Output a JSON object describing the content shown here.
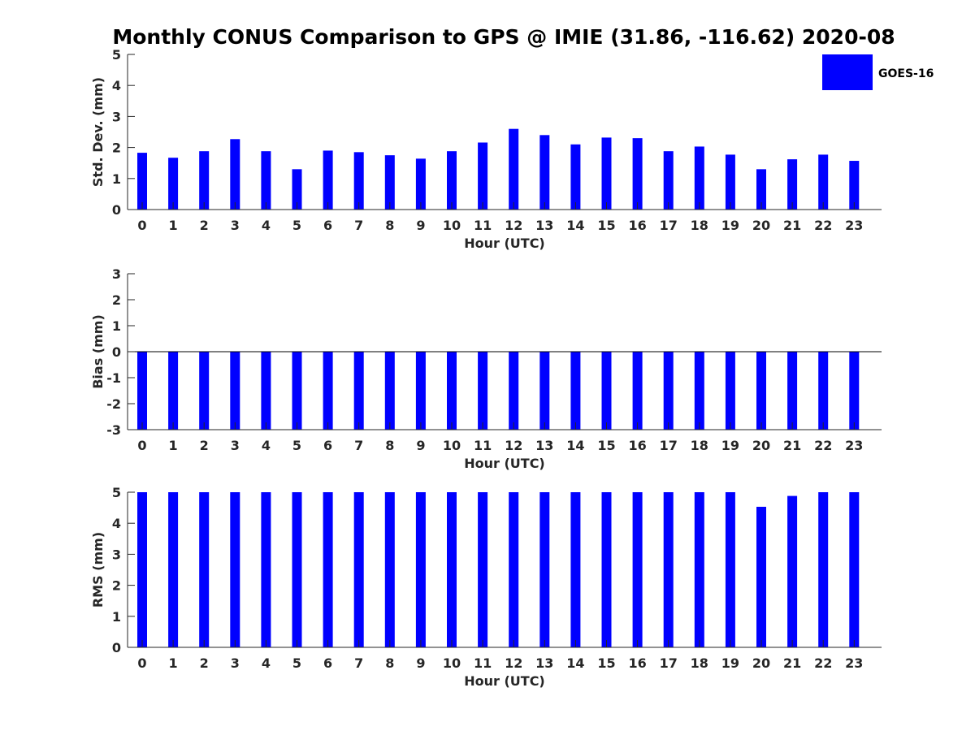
{
  "chart_data": {
    "title": "Monthly CONUS Comparison to GPS @ IMIE (31.86, -116.62) 2020-08",
    "legend": {
      "entries": [
        "GOES-16"
      ],
      "placement": "top-right"
    },
    "series_color": "#0000ff",
    "panels": [
      {
        "type": "bar",
        "xlabel": "Hour (UTC)",
        "ylabel": "Std. Dev. (mm)",
        "ylim": [
          0,
          5
        ],
        "yticks": [
          0,
          1,
          2,
          3,
          4,
          5
        ],
        "categories": [
          "0",
          "1",
          "2",
          "3",
          "4",
          "5",
          "6",
          "7",
          "8",
          "9",
          "10",
          "11",
          "12",
          "13",
          "14",
          "15",
          "16",
          "17",
          "18",
          "19",
          "20",
          "21",
          "22",
          "23"
        ],
        "series": [
          {
            "name": "GOES-16",
            "values": [
              1.83,
              1.67,
              1.88,
              2.27,
              1.88,
              1.3,
              1.9,
              1.85,
              1.75,
              1.64,
              1.88,
              2.16,
              2.6,
              2.4,
              2.1,
              2.32,
              2.3,
              1.88,
              2.03,
              1.77,
              1.3,
              1.62,
              1.77,
              1.57
            ]
          }
        ]
      },
      {
        "type": "bar",
        "xlabel": "Hour (UTC)",
        "ylabel": "Bias (mm)",
        "ylim": [
          -3,
          3
        ],
        "yticks": [
          -3,
          -2,
          -1,
          0,
          1,
          2,
          3
        ],
        "categories": [
          "0",
          "1",
          "2",
          "3",
          "4",
          "5",
          "6",
          "7",
          "8",
          "9",
          "10",
          "11",
          "12",
          "13",
          "14",
          "15",
          "16",
          "17",
          "18",
          "19",
          "20",
          "21",
          "22",
          "23"
        ],
        "series": [
          {
            "name": "GOES-16",
            "values": [
              -3,
              -3,
              -3,
              -3,
              -3,
              -3,
              -3,
              -3,
              -3,
              -3,
              -3,
              -3,
              -3,
              -3,
              -3,
              -3,
              -3,
              -3,
              -3,
              -3,
              -3,
              -3,
              -3,
              -3
            ]
          }
        ]
      },
      {
        "type": "bar",
        "xlabel": "Hour (UTC)",
        "ylabel": "RMS (mm)",
        "ylim": [
          0,
          5
        ],
        "yticks": [
          0,
          1,
          2,
          3,
          4,
          5
        ],
        "categories": [
          "0",
          "1",
          "2",
          "3",
          "4",
          "5",
          "6",
          "7",
          "8",
          "9",
          "10",
          "11",
          "12",
          "13",
          "14",
          "15",
          "16",
          "17",
          "18",
          "19",
          "20",
          "21",
          "22",
          "23"
        ],
        "series": [
          {
            "name": "GOES-16",
            "values": [
              5,
              5,
              5,
              5,
              5,
              5,
              5,
              5,
              5,
              5,
              5,
              5,
              5,
              5,
              5,
              5,
              5,
              5,
              5,
              5,
              4.53,
              4.88,
              5,
              5
            ]
          }
        ]
      }
    ]
  }
}
